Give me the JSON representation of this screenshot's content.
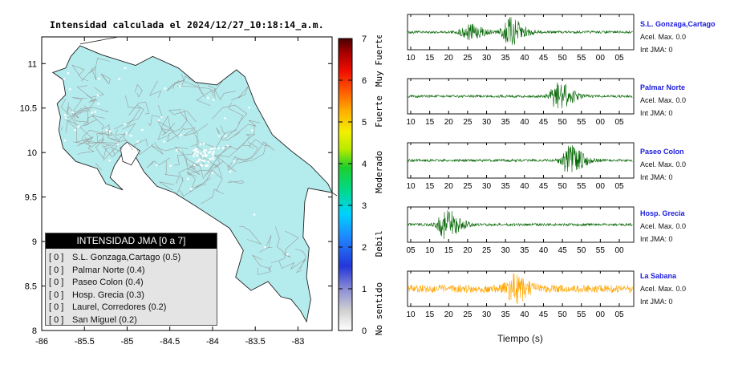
{
  "map": {
    "title": "Intensidad calculada el 2024/12/27_10:18:14_a.m.",
    "x_ticks": [
      "-86",
      "-85.5",
      "-85",
      "-84.5",
      "-84",
      "-83.5",
      "-83"
    ],
    "y_ticks": [
      "11",
      "10.5",
      "10",
      "9.5",
      "9",
      "8.5",
      "8"
    ],
    "land_color": "#b4ecee",
    "border_color": "#222222",
    "road_color": "#9a9a9a"
  },
  "colorbar": {
    "ticks": [
      "0",
      "1",
      "2",
      "3",
      "4",
      "5",
      "6",
      "7"
    ],
    "labels": [
      "No sentido",
      "Debil",
      "Moderado",
      "Fuerte",
      "Muy Fuerte"
    ]
  },
  "legend": {
    "title": "INTENSIDAD JMA [0 a 7]",
    "items": [
      {
        "tag": "[ 0 ]",
        "label": "S.L. Gonzaga,Cartago (0.5)"
      },
      {
        "tag": "[ 0 ]",
        "label": "Palmar Norte (0.4)"
      },
      {
        "tag": "[ 0 ]",
        "label": "Paseo Colon (0.4)"
      },
      {
        "tag": "[ 0 ]",
        "label": "Hosp. Grecia (0.3)"
      },
      {
        "tag": "[ 0 ]",
        "label": "Laurel, Corredores (0.2)"
      },
      {
        "tag": "[ 0 ]",
        "label": "San Miguel (0.2)"
      }
    ]
  },
  "stations": [
    {
      "name": "S.L. Gonzaga,Cartago",
      "acc": "Acel. Max. 0.0",
      "jma": "Int JMA: 0",
      "color": "#006400",
      "ticks": [
        "10",
        "15",
        "20",
        "25",
        "30",
        "35",
        "40",
        "45",
        "50",
        "55",
        "00",
        "05"
      ],
      "bursts": [
        [
          24,
          0.5
        ],
        [
          35,
          0.9
        ]
      ]
    },
    {
      "name": "Palmar Norte",
      "acc": "Acel. Max. 0.0",
      "jma": "Int JMA: 0",
      "color": "#006400",
      "ticks": [
        "10",
        "15",
        "20",
        "25",
        "30",
        "35",
        "40",
        "45",
        "50",
        "55",
        "00",
        "05"
      ],
      "bursts": [
        [
          48,
          0.9
        ]
      ]
    },
    {
      "name": "Paseo Colon",
      "acc": "Acel. Max. 0.0",
      "jma": "Int JMA: 0",
      "color": "#006400",
      "ticks": [
        "10",
        "15",
        "20",
        "25",
        "30",
        "35",
        "40",
        "45",
        "50",
        "55",
        "00",
        "05"
      ],
      "bursts": [
        [
          51,
          0.95
        ]
      ]
    },
    {
      "name": "Hosp. Grecia",
      "acc": "Acel. Max. 0.0",
      "jma": "Int JMA: 0",
      "color": "#006400",
      "ticks": [
        "05",
        "10",
        "15",
        "20",
        "25",
        "30",
        "35",
        "40",
        "45",
        "50",
        "55",
        "00"
      ],
      "bursts": [
        [
          18,
          0.95
        ]
      ]
    },
    {
      "name": "La Sabana",
      "acc": "Acel. Max. 0.0",
      "jma": "Int JMA: 0",
      "color": "#ffa500",
      "ticks": [
        "10",
        "15",
        "20",
        "25",
        "30",
        "35",
        "40",
        "45",
        "50",
        "55",
        "00",
        "05"
      ],
      "bursts": [
        [
          36,
          0.7
        ]
      ]
    }
  ],
  "time_label": "Tiempo (s)",
  "chart_data": [
    {
      "type": "scatter",
      "title": "Intensidad calculada el 2024/12/27_10:18:14_a.m.",
      "xlabel": "",
      "ylabel": "",
      "xlim": [
        -86,
        -82.6
      ],
      "ylim": [
        8,
        11.3
      ]
    },
    {
      "type": "line",
      "title": "",
      "xlabel": "Tiempo (s)",
      "ylabel": "",
      "series": [
        {
          "name": "S.L. Gonzaga,Cartago",
          "values": [
            0.0
          ]
        },
        {
          "name": "Palmar Norte",
          "values": [
            0.0
          ]
        },
        {
          "name": "Paseo Colon",
          "values": [
            0.0
          ]
        },
        {
          "name": "Hosp. Grecia",
          "values": [
            0.0
          ]
        },
        {
          "name": "La Sabana",
          "values": [
            0.0
          ]
        }
      ]
    }
  ]
}
